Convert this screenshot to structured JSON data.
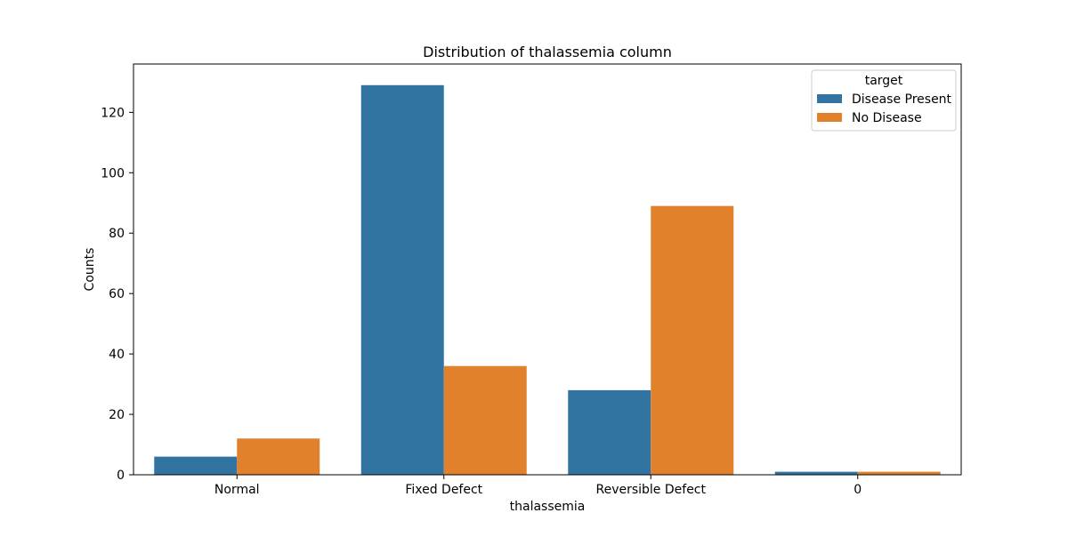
{
  "chart_data": {
    "type": "bar",
    "title": "Distribution of thalassemia column",
    "xlabel": "thalassemia",
    "ylabel": "Counts",
    "categories": [
      "Normal",
      "Fixed Defect",
      "Reversible Defect",
      "0"
    ],
    "ylim": [
      0,
      136
    ],
    "yticks": [
      0,
      20,
      40,
      60,
      80,
      100,
      120
    ],
    "grid": false,
    "legend": {
      "title": "target",
      "placement": "top-right"
    },
    "series": [
      {
        "name": "Disease Present",
        "color": "#3274a1",
        "values": [
          6,
          129,
          28,
          1
        ]
      },
      {
        "name": "No Disease",
        "color": "#e1812c",
        "values": [
          12,
          36,
          89,
          1
        ]
      }
    ]
  }
}
